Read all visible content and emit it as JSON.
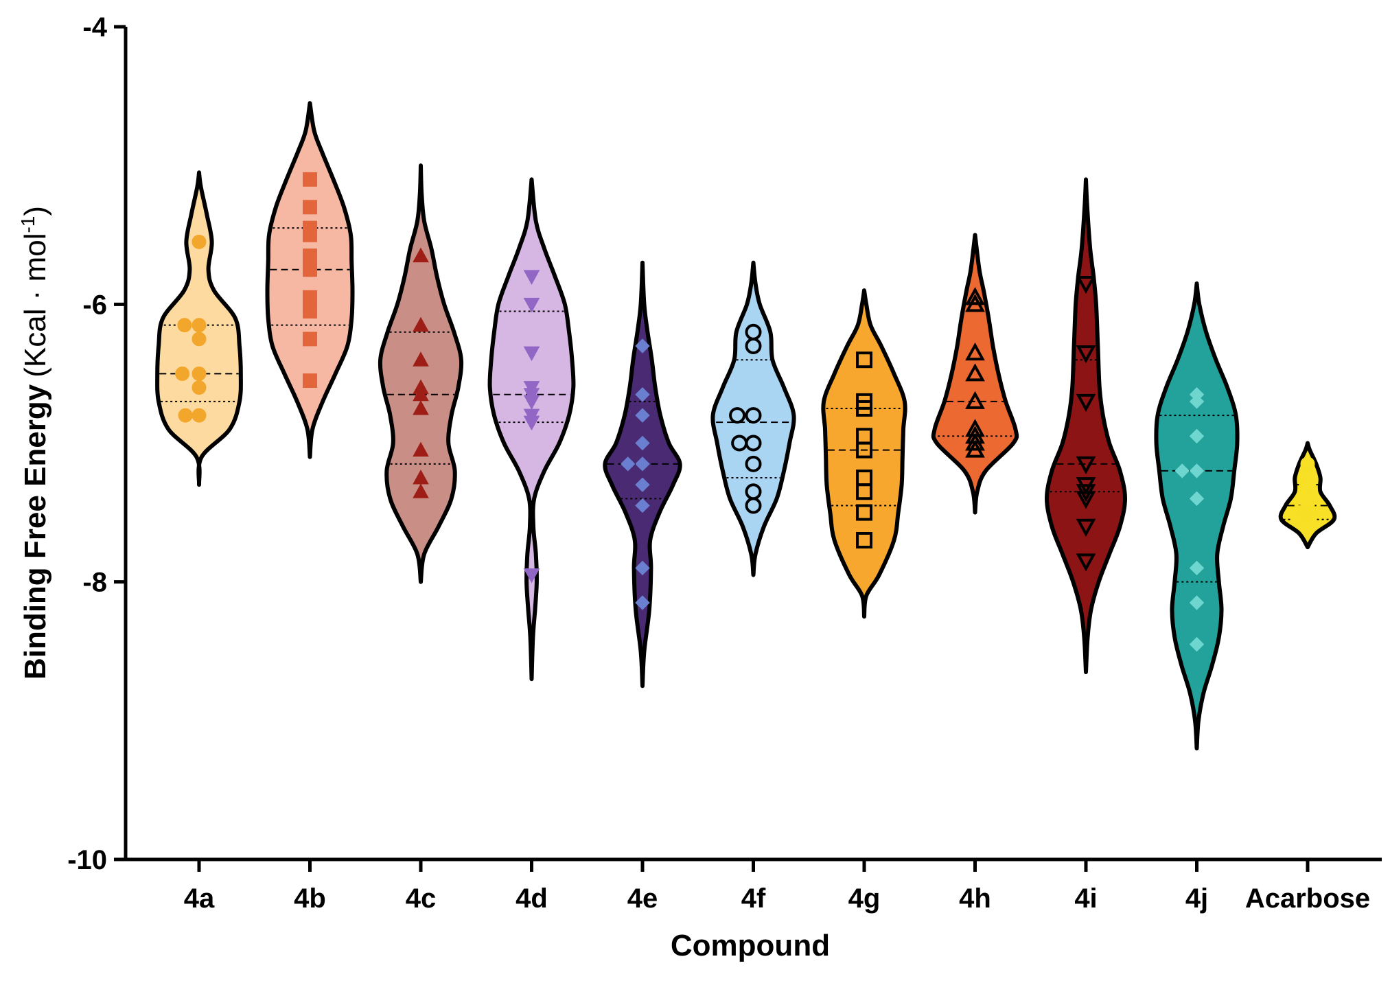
{
  "chart_data": {
    "type": "violin",
    "xlabel": "Compound",
    "ylabel": "Binding Free Energy",
    "ylabel_unit_prefix": "(Kcal · mol",
    "ylabel_unit_sup": "-1",
    "ylabel_unit_suffix": ")",
    "ylim": [
      -10,
      -4
    ],
    "yticks": [
      -4,
      -6,
      -8,
      -10
    ],
    "ytick_labels": [
      "-4",
      "-6",
      "-8",
      "-10"
    ],
    "categories": [
      "4a",
      "4b",
      "4c",
      "4d",
      "4e",
      "4f",
      "4g",
      "4h",
      "4i",
      "4j",
      "Acarbose"
    ],
    "series": [
      {
        "category": "4a",
        "color": "#fddba0",
        "point_color": "#f2a62b",
        "marker": "circle-filled",
        "points": [
          -5.55,
          -6.15,
          -6.15,
          -6.25,
          -6.5,
          -6.5,
          -6.6,
          -6.8,
          -6.8
        ],
        "range": [
          -7.3,
          -5.05
        ],
        "shape": [
          [
            -7.3,
            0.0
          ],
          [
            -7.1,
            0.06
          ],
          [
            -6.9,
            0.72
          ],
          [
            -6.7,
            0.95
          ],
          [
            -6.5,
            0.98
          ],
          [
            -6.3,
            0.95
          ],
          [
            -6.1,
            0.85
          ],
          [
            -5.9,
            0.35
          ],
          [
            -5.75,
            0.22
          ],
          [
            -5.55,
            0.3
          ],
          [
            -5.35,
            0.18
          ],
          [
            -5.15,
            0.04
          ],
          [
            -5.05,
            0.0
          ]
        ],
        "quartiles": [
          -6.7,
          -6.5,
          -6.15
        ]
      },
      {
        "category": "4b",
        "color": "#f6b8a2",
        "point_color": "#e2653b",
        "marker": "square-filled",
        "points": [
          -5.1,
          -5.3,
          -5.45,
          -5.5,
          -5.65,
          -5.75,
          -5.95,
          -6.05,
          -6.25,
          -6.55
        ],
        "range": [
          -7.1,
          -4.55
        ],
        "shape": [
          [
            -7.1,
            0.0
          ],
          [
            -6.9,
            0.06
          ],
          [
            -6.7,
            0.3
          ],
          [
            -6.5,
            0.6
          ],
          [
            -6.3,
            0.88
          ],
          [
            -6.1,
            0.98
          ],
          [
            -5.9,
            1.0
          ],
          [
            -5.7,
            0.98
          ],
          [
            -5.5,
            0.96
          ],
          [
            -5.3,
            0.8
          ],
          [
            -5.1,
            0.55
          ],
          [
            -4.9,
            0.28
          ],
          [
            -4.75,
            0.1
          ],
          [
            -4.55,
            0.0
          ]
        ],
        "quartiles": [
          -6.15,
          -5.75,
          -5.45
        ]
      },
      {
        "category": "4c",
        "color": "#c98f86",
        "point_color": "#9e1e17",
        "marker": "triangle-up-filled",
        "points": [
          -5.65,
          -6.15,
          -6.4,
          -6.6,
          -6.65,
          -6.75,
          -7.05,
          -7.25,
          -7.35
        ],
        "range": [
          -8.0,
          -5.0
        ],
        "shape": [
          [
            -8.0,
            0.0
          ],
          [
            -7.8,
            0.08
          ],
          [
            -7.6,
            0.42
          ],
          [
            -7.4,
            0.72
          ],
          [
            -7.2,
            0.8
          ],
          [
            -7.0,
            0.65
          ],
          [
            -6.8,
            0.72
          ],
          [
            -6.6,
            0.88
          ],
          [
            -6.4,
            0.95
          ],
          [
            -6.2,
            0.78
          ],
          [
            -6.0,
            0.55
          ],
          [
            -5.8,
            0.38
          ],
          [
            -5.6,
            0.25
          ],
          [
            -5.4,
            0.08
          ],
          [
            -5.2,
            0.02
          ],
          [
            -5.0,
            0.0
          ]
        ],
        "quartiles": [
          -7.15,
          -6.65,
          -6.2
        ]
      },
      {
        "category": "4d",
        "color": "#d6b7e4",
        "point_color": "#9166c5",
        "marker": "triangle-down-filled",
        "points": [
          -5.8,
          -6.0,
          -6.35,
          -6.6,
          -6.65,
          -6.7,
          -6.8,
          -6.85,
          -7.95
        ],
        "range": [
          -8.7,
          -5.1
        ],
        "shape": [
          [
            -8.7,
            0.0
          ],
          [
            -8.4,
            0.03
          ],
          [
            -8.2,
            0.08
          ],
          [
            -8.0,
            0.12
          ],
          [
            -7.8,
            0.1
          ],
          [
            -7.6,
            0.04
          ],
          [
            -7.4,
            0.06
          ],
          [
            -7.2,
            0.3
          ],
          [
            -7.0,
            0.65
          ],
          [
            -6.8,
            0.88
          ],
          [
            -6.6,
            0.98
          ],
          [
            -6.4,
            0.95
          ],
          [
            -6.2,
            0.88
          ],
          [
            -6.0,
            0.78
          ],
          [
            -5.8,
            0.55
          ],
          [
            -5.6,
            0.3
          ],
          [
            -5.4,
            0.1
          ],
          [
            -5.1,
            0.0
          ]
        ],
        "quartiles": [
          -6.85,
          -6.65,
          -6.05
        ]
      },
      {
        "category": "4e",
        "color": "#4a2a73",
        "point_color": "#6a7fcf",
        "marker": "diamond-filled",
        "points": [
          -6.3,
          -6.65,
          -6.8,
          -7.0,
          -7.15,
          -7.15,
          -7.3,
          -7.45,
          -7.9,
          -8.15
        ],
        "range": [
          -8.75,
          -5.7
        ],
        "shape": [
          [
            -8.75,
            0.0
          ],
          [
            -8.5,
            0.04
          ],
          [
            -8.2,
            0.16
          ],
          [
            -7.9,
            0.2
          ],
          [
            -7.7,
            0.18
          ],
          [
            -7.5,
            0.4
          ],
          [
            -7.3,
            0.72
          ],
          [
            -7.15,
            0.88
          ],
          [
            -7.0,
            0.62
          ],
          [
            -6.8,
            0.42
          ],
          [
            -6.6,
            0.3
          ],
          [
            -6.4,
            0.22
          ],
          [
            -6.2,
            0.12
          ],
          [
            -6.0,
            0.04
          ],
          [
            -5.7,
            0.0
          ]
        ],
        "quartiles": [
          -7.4,
          -7.15,
          -6.7
        ]
      },
      {
        "category": "4f",
        "color": "#a9d4f2",
        "point_color": "#a9d4f2",
        "marker": "circle-open",
        "points": [
          -6.2,
          -6.3,
          -6.8,
          -6.8,
          -7.0,
          -7.0,
          -7.15,
          -7.35,
          -7.45
        ],
        "range": [
          -7.95,
          -5.7
        ],
        "shape": [
          [
            -7.95,
            0.0
          ],
          [
            -7.8,
            0.05
          ],
          [
            -7.6,
            0.25
          ],
          [
            -7.4,
            0.55
          ],
          [
            -7.2,
            0.72
          ],
          [
            -7.0,
            0.85
          ],
          [
            -6.8,
            0.95
          ],
          [
            -6.6,
            0.72
          ],
          [
            -6.4,
            0.45
          ],
          [
            -6.2,
            0.4
          ],
          [
            -6.0,
            0.15
          ],
          [
            -5.85,
            0.05
          ],
          [
            -5.7,
            0.0
          ]
        ],
        "quartiles": [
          -7.25,
          -6.85,
          -6.4
        ]
      },
      {
        "category": "4g",
        "color": "#f7a72e",
        "point_color": "#f7a72e",
        "marker": "square-open",
        "points": [
          -6.4,
          -6.7,
          -6.75,
          -6.95,
          -7.05,
          -7.25,
          -7.35,
          -7.5,
          -7.7
        ],
        "range": [
          -8.25,
          -5.9
        ],
        "shape": [
          [
            -8.25,
            0.0
          ],
          [
            -8.1,
            0.05
          ],
          [
            -7.95,
            0.35
          ],
          [
            -7.7,
            0.7
          ],
          [
            -7.5,
            0.8
          ],
          [
            -7.3,
            0.88
          ],
          [
            -7.1,
            0.9
          ],
          [
            -6.9,
            0.92
          ],
          [
            -6.7,
            0.95
          ],
          [
            -6.5,
            0.7
          ],
          [
            -6.3,
            0.4
          ],
          [
            -6.15,
            0.15
          ],
          [
            -6.0,
            0.05
          ],
          [
            -5.9,
            0.0
          ]
        ],
        "quartiles": [
          -7.45,
          -7.05,
          -6.75
        ]
      },
      {
        "category": "4h",
        "color": "#ec6a31",
        "point_color": "#ec6a31",
        "marker": "triangle-up-open",
        "points": [
          -5.95,
          -6.0,
          -6.35,
          -6.5,
          -6.7,
          -6.9,
          -6.95,
          -7.0,
          -7.05
        ],
        "range": [
          -7.5,
          -5.5
        ],
        "shape": [
          [
            -7.5,
            0.0
          ],
          [
            -7.35,
            0.05
          ],
          [
            -7.2,
            0.25
          ],
          [
            -7.0,
            0.9
          ],
          [
            -6.9,
            0.95
          ],
          [
            -6.7,
            0.72
          ],
          [
            -6.5,
            0.55
          ],
          [
            -6.3,
            0.42
          ],
          [
            -6.1,
            0.32
          ],
          [
            -5.9,
            0.2
          ],
          [
            -5.75,
            0.1
          ],
          [
            -5.5,
            0.0
          ]
        ],
        "quartiles": [
          -6.95,
          -6.7,
          -6.0
        ]
      },
      {
        "category": "4i",
        "color": "#8c1414",
        "point_color": "#8c1414",
        "marker": "triangle-down-open",
        "points": [
          -5.85,
          -6.35,
          -6.7,
          -7.15,
          -7.3,
          -7.35,
          -7.4,
          -7.6,
          -7.85
        ],
        "range": [
          -8.65,
          -5.1
        ],
        "shape": [
          [
            -8.65,
            0.0
          ],
          [
            -8.4,
            0.04
          ],
          [
            -8.2,
            0.12
          ],
          [
            -8.0,
            0.3
          ],
          [
            -7.8,
            0.55
          ],
          [
            -7.6,
            0.8
          ],
          [
            -7.4,
            0.92
          ],
          [
            -7.2,
            0.8
          ],
          [
            -7.0,
            0.55
          ],
          [
            -6.8,
            0.4
          ],
          [
            -6.6,
            0.32
          ],
          [
            -6.3,
            0.28
          ],
          [
            -6.0,
            0.24
          ],
          [
            -5.8,
            0.18
          ],
          [
            -5.6,
            0.1
          ],
          [
            -5.3,
            0.03
          ],
          [
            -5.1,
            0.0
          ]
        ],
        "quartiles": [
          -7.35,
          -7.15,
          -6.4
        ]
      },
      {
        "category": "4j",
        "color": "#22a29a",
        "point_color": "#6fd6cf",
        "marker": "diamond-filled",
        "points": [
          -6.65,
          -6.7,
          -6.95,
          -7.2,
          -7.2,
          -7.4,
          -7.9,
          -8.15,
          -8.45
        ],
        "range": [
          -9.2,
          -5.85
        ],
        "shape": [
          [
            -9.2,
            0.0
          ],
          [
            -9.0,
            0.04
          ],
          [
            -8.8,
            0.16
          ],
          [
            -8.6,
            0.36
          ],
          [
            -8.4,
            0.52
          ],
          [
            -8.2,
            0.58
          ],
          [
            -8.0,
            0.52
          ],
          [
            -7.8,
            0.48
          ],
          [
            -7.6,
            0.62
          ],
          [
            -7.4,
            0.8
          ],
          [
            -7.2,
            0.88
          ],
          [
            -7.0,
            0.95
          ],
          [
            -6.8,
            0.92
          ],
          [
            -6.6,
            0.72
          ],
          [
            -6.4,
            0.45
          ],
          [
            -6.2,
            0.22
          ],
          [
            -6.0,
            0.06
          ],
          [
            -5.85,
            0.0
          ]
        ],
        "quartiles": [
          -8.0,
          -7.2,
          -6.8
        ]
      },
      {
        "category": "Acarbose",
        "color": "#f7e025",
        "point_color": "#f7e025",
        "marker": "circle-filled",
        "points": [
          -7.15,
          -7.3,
          -7.45,
          -7.5,
          -7.5,
          -7.55,
          -7.55,
          -7.6
        ],
        "range": [
          -7.75,
          -7.0
        ],
        "shape": [
          [
            -7.75,
            0.0
          ],
          [
            -7.65,
            0.2
          ],
          [
            -7.55,
            0.62
          ],
          [
            -7.45,
            0.52
          ],
          [
            -7.35,
            0.3
          ],
          [
            -7.25,
            0.3
          ],
          [
            -7.15,
            0.2
          ],
          [
            -7.05,
            0.05
          ],
          [
            -7.0,
            0.0
          ]
        ],
        "quartiles": [
          -7.55,
          -7.45,
          -7.3
        ]
      }
    ]
  }
}
